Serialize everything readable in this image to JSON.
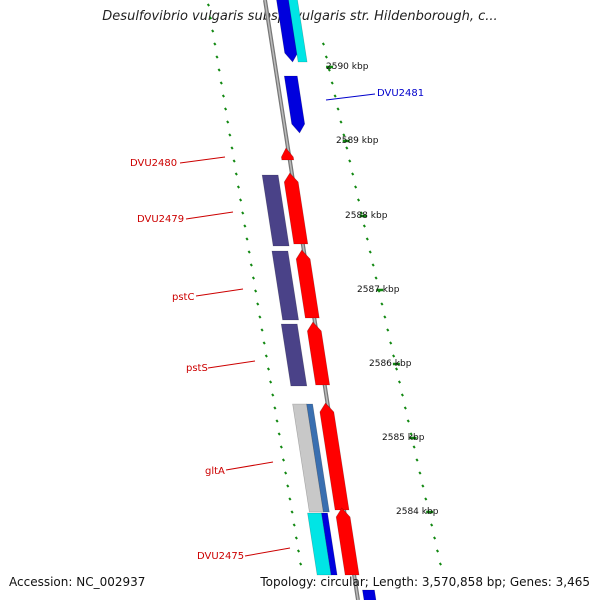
{
  "title": "Desulfovibrio vulgaris subsp. vulgaris str. Hildenborough, c...",
  "footer": {
    "accession": "Accession: NC_002937",
    "summary": "Topology: circular; Length: 3,570,858 bp; Genes: 3,465"
  },
  "kbp_marks": [
    "2590 kbp",
    "2589 kbp",
    "2588 kbp",
    "2587 kbp",
    "2586 kbp",
    "2585 kbp",
    "2584 kbp"
  ],
  "gene_labels": [
    {
      "name": "DVU2481",
      "strand": "reverse",
      "color": "#0000cc"
    },
    {
      "name": "DVU2480",
      "strand": "forward",
      "color": "#cc0000"
    },
    {
      "name": "DVU2479",
      "strand": "forward",
      "color": "#cc0000"
    },
    {
      "name": "pstC",
      "strand": "forward",
      "color": "#cc0000"
    },
    {
      "name": "pstS",
      "strand": "forward",
      "color": "#cc0000"
    },
    {
      "name": "gltA",
      "strand": "forward",
      "color": "#cc0000"
    },
    {
      "name": "DVU2475",
      "strand": "forward",
      "color": "#cc0000"
    }
  ],
  "colors": {
    "forward_cds": "#ff0000",
    "reverse_cds": "#0000dd",
    "cog_purple": "#4a4288",
    "cyan": "#00e5e5",
    "backbone": "#888888",
    "tick": "#118811"
  }
}
